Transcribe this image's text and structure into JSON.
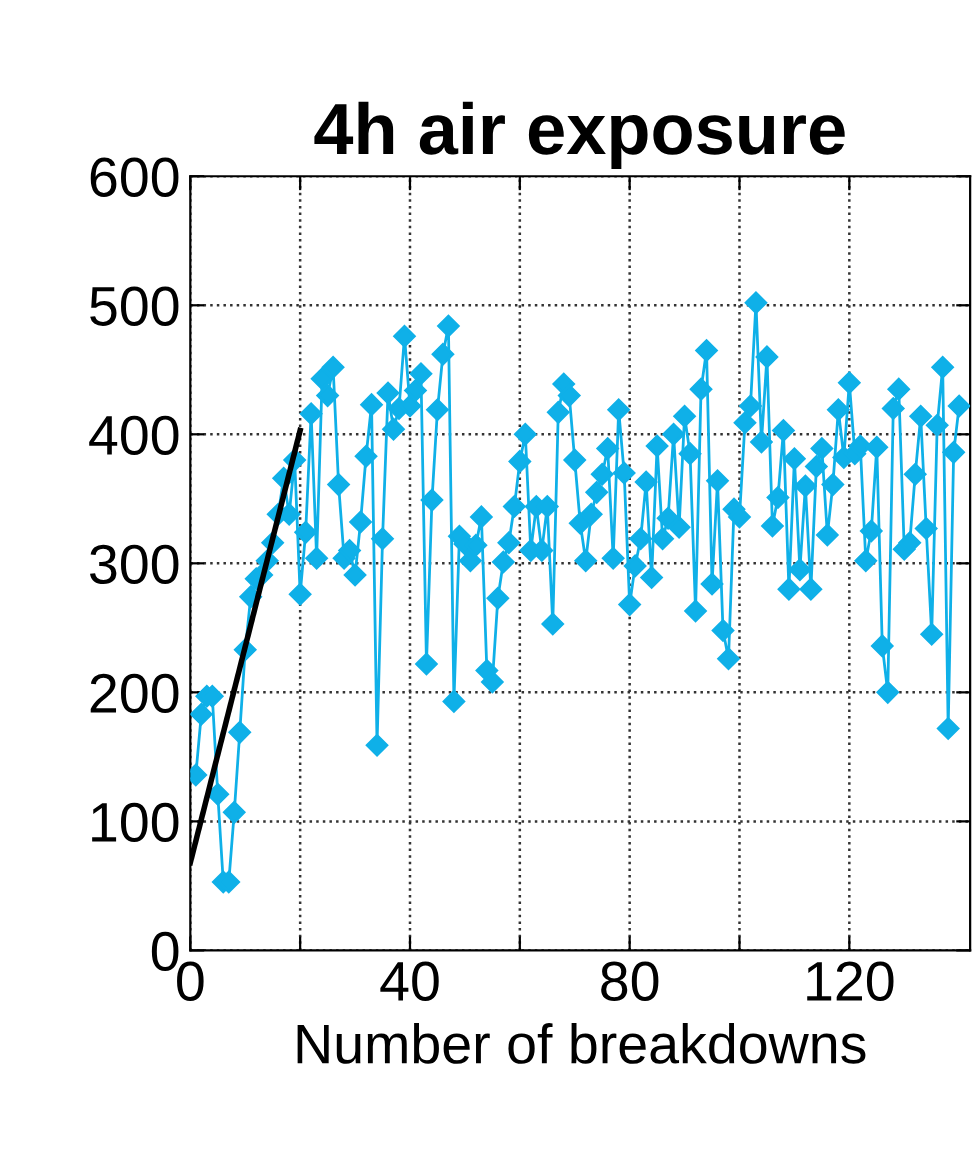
{
  "chart_data": {
    "type": "line",
    "title": "4h air exposure",
    "xlabel": "Number of breakdowns",
    "xlim": [
      0,
      142
    ],
    "xticks": [
      0,
      {
        "value": 20,
        "label": null
      },
      40,
      {
        "value": 60,
        "label": null
      },
      80,
      {
        "value": 100,
        "label": null
      },
      120
    ],
    "ylim": [
      0,
      600
    ],
    "yticks": [
      0,
      100,
      200,
      300,
      400,
      500,
      600
    ],
    "grid": true,
    "legend": false,
    "series": [
      {
        "color": "#0fb0e8",
        "marker": "diamond",
        "x": [
          1,
          2,
          3,
          4,
          5,
          6,
          7,
          8,
          9,
          10,
          11,
          12,
          13,
          14,
          15,
          16,
          17,
          18,
          19,
          20,
          21,
          22,
          23,
          24,
          25,
          26,
          27,
          28,
          29,
          30,
          31,
          32,
          33,
          34,
          35,
          36,
          37,
          38,
          39,
          40,
          41,
          42,
          43,
          44,
          45,
          46,
          47,
          48,
          49,
          50,
          51,
          52,
          53,
          54,
          55,
          56,
          57,
          58,
          59,
          60,
          61,
          62,
          63,
          64,
          65,
          66,
          67,
          68,
          69,
          70,
          71,
          72,
          73,
          74,
          75,
          76,
          77,
          78,
          79,
          80,
          81,
          82,
          83,
          84,
          85,
          86,
          87,
          88,
          89,
          90,
          91,
          92,
          93,
          94,
          95,
          96,
          97,
          98,
          99,
          100,
          101,
          102,
          103,
          104,
          105,
          106,
          107,
          108,
          109,
          110,
          111,
          112,
          113,
          114,
          115,
          116,
          117,
          118,
          119,
          120,
          121,
          122,
          123,
          124,
          125,
          126,
          127,
          128,
          129,
          130,
          131,
          132,
          133,
          134,
          135,
          136,
          137,
          138,
          139,
          140
        ],
        "values": [
          136,
          183,
          197,
          197,
          121,
          53,
          53,
          107,
          169,
          233,
          274,
          288,
          291,
          302,
          316,
          338,
          366,
          338,
          380,
          276,
          324,
          416,
          304,
          443,
          430,
          452,
          361,
          304,
          310,
          291,
          332,
          383,
          423,
          159,
          319,
          432,
          404,
          420,
          476,
          422,
          434,
          447,
          222,
          349,
          419,
          462,
          484,
          193,
          321,
          315,
          302,
          314,
          336,
          217,
          208,
          273,
          301,
          316,
          344,
          379,
          400,
          310,
          344,
          310,
          344,
          253,
          417,
          439,
          430,
          380,
          331,
          302,
          338,
          355,
          369,
          389,
          304,
          419,
          370,
          268,
          298,
          319,
          363,
          289,
          391,
          319,
          335,
          400,
          328,
          414,
          385,
          263,
          435,
          465,
          284,
          364,
          248,
          226,
          342,
          336,
          409,
          422,
          502,
          394,
          460,
          329,
          351,
          403,
          280,
          381,
          295,
          360,
          280,
          375,
          389,
          322,
          361,
          419,
          382,
          440,
          385,
          391,
          302,
          325,
          390,
          236,
          200,
          420,
          435,
          311,
          316,
          369,
          414,
          327,
          245,
          407,
          452,
          172,
          386,
          422
        ]
      },
      {
        "color": "#000000",
        "marker": "none",
        "x": [
          0,
          20
        ],
        "values": [
          68,
          403
        ]
      }
    ]
  }
}
